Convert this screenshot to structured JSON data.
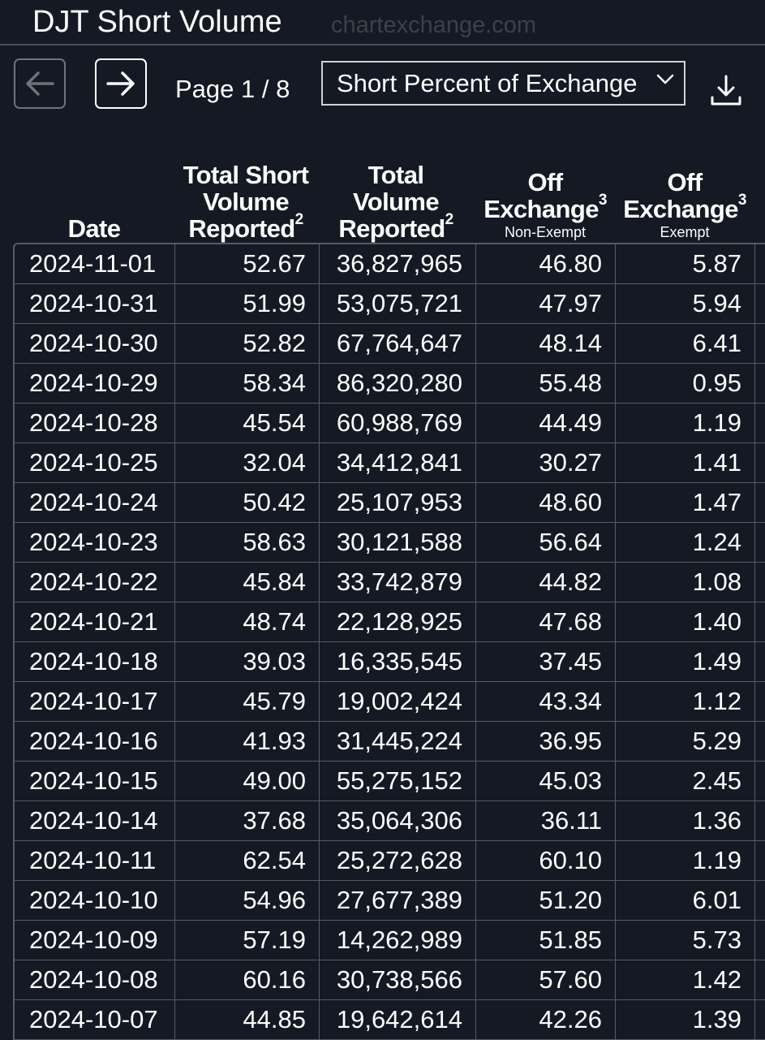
{
  "header": {
    "title": "DJT Short Volume",
    "watermark": "chartexchange.com"
  },
  "toolbar": {
    "prev_icon": "arrow-left-icon",
    "next_icon": "arrow-right-icon",
    "page_label": "Page 1 / 8",
    "metric_select": {
      "selected": "Short Percent of Exchange",
      "icon": "chevron-down-icon"
    },
    "download_icon": "download-icon"
  },
  "columns": [
    {
      "title": "Date",
      "sup": "",
      "sub": ""
    },
    {
      "title": "Total Short Volume Reported",
      "sup": "2",
      "sub": ""
    },
    {
      "title": "Total Volume Reported",
      "sup": "2",
      "sub": ""
    },
    {
      "title": "Off Exchange",
      "sup": "3",
      "sub": "Non-Exempt"
    },
    {
      "title": "Off Exchange",
      "sup": "3",
      "sub": "Exempt"
    }
  ],
  "rows": [
    [
      "2024-11-01",
      "52.67",
      "36,827,965",
      "46.80",
      "5.87"
    ],
    [
      "2024-10-31",
      "51.99",
      "53,075,721",
      "47.97",
      "5.94"
    ],
    [
      "2024-10-30",
      "52.82",
      "67,764,647",
      "48.14",
      "6.41"
    ],
    [
      "2024-10-29",
      "58.34",
      "86,320,280",
      "55.48",
      "0.95"
    ],
    [
      "2024-10-28",
      "45.54",
      "60,988,769",
      "44.49",
      "1.19"
    ],
    [
      "2024-10-25",
      "32.04",
      "34,412,841",
      "30.27",
      "1.41"
    ],
    [
      "2024-10-24",
      "50.42",
      "25,107,953",
      "48.60",
      "1.47"
    ],
    [
      "2024-10-23",
      "58.63",
      "30,121,588",
      "56.64",
      "1.24"
    ],
    [
      "2024-10-22",
      "45.84",
      "33,742,879",
      "44.82",
      "1.08"
    ],
    [
      "2024-10-21",
      "48.74",
      "22,128,925",
      "47.68",
      "1.40"
    ],
    [
      "2024-10-18",
      "39.03",
      "16,335,545",
      "37.45",
      "1.49"
    ],
    [
      "2024-10-17",
      "45.79",
      "19,002,424",
      "43.34",
      "1.12"
    ],
    [
      "2024-10-16",
      "41.93",
      "31,445,224",
      "36.95",
      "5.29"
    ],
    [
      "2024-10-15",
      "49.00",
      "55,275,152",
      "45.03",
      "2.45"
    ],
    [
      "2024-10-14",
      "37.68",
      "35,064,306",
      "36.11",
      "1.36"
    ],
    [
      "2024-10-11",
      "62.54",
      "25,272,628",
      "60.10",
      "1.19"
    ],
    [
      "2024-10-10",
      "54.96",
      "27,677,389",
      "51.20",
      "6.01"
    ],
    [
      "2024-10-09",
      "57.19",
      "14,262,989",
      "51.85",
      "5.73"
    ],
    [
      "2024-10-08",
      "60.16",
      "30,738,566",
      "57.60",
      "1.42"
    ],
    [
      "2024-10-07",
      "44.85",
      "19,642,614",
      "42.26",
      "1.39"
    ]
  ]
}
